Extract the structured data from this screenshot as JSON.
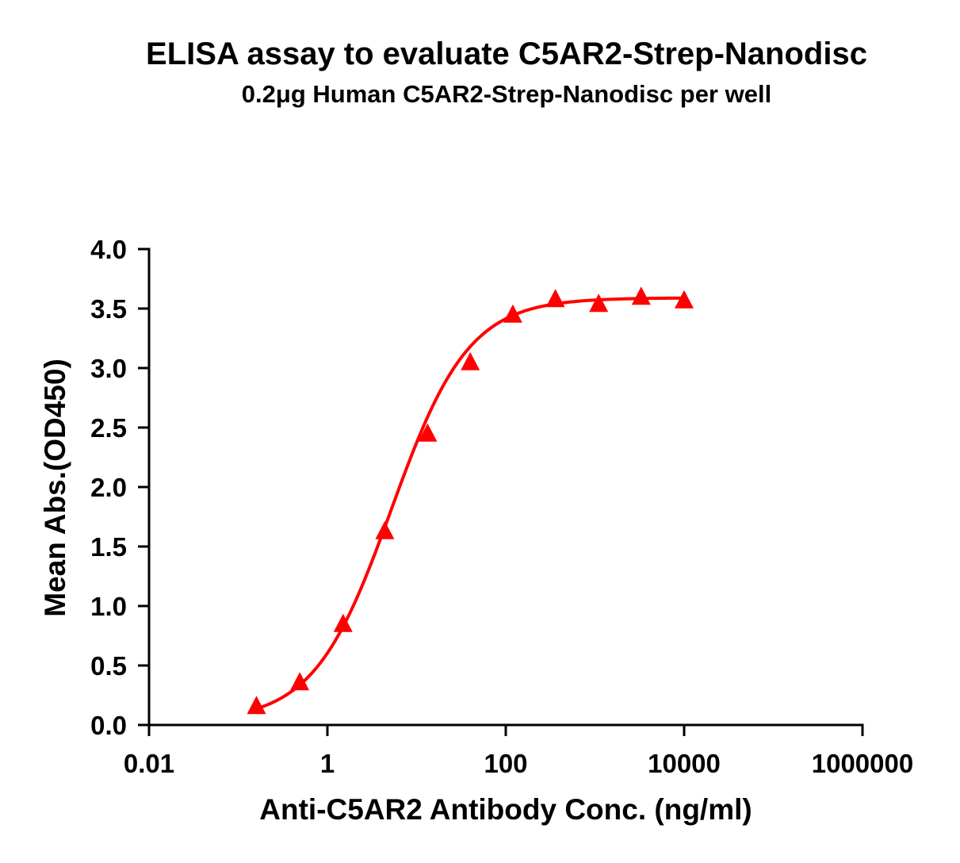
{
  "chart_data": {
    "type": "scatter",
    "title": "ELISA assay to evaluate C5AR2-Strep-Nanodisc",
    "subtitle": "0.2μg Human C5AR2-Strep-Nanodisc per well",
    "xlabel": "Anti-C5AR2 Antibody Conc. (ng/ml)",
    "ylabel": "Mean Abs.(OD450)",
    "xscale": "log",
    "xlim": [
      0.01,
      1000000
    ],
    "ylim": [
      0,
      4.0
    ],
    "x_ticks": [
      "0.01",
      "1",
      "100",
      "10000",
      "1000000"
    ],
    "y_ticks": [
      "0.0",
      "0.5",
      "1.0",
      "1.5",
      "2.0",
      "2.5",
      "3.0",
      "3.5",
      "4.0"
    ],
    "grid": false,
    "color": "#ff0000",
    "marker": "triangle",
    "fit": "4-parameter logistic curve",
    "series": [
      {
        "x": [
          0.16,
          0.49,
          1.5,
          4.4,
          13.3,
          40,
          120,
          360,
          1100,
          3300,
          10000
        ],
        "y": [
          0.15,
          0.35,
          0.84,
          1.62,
          2.44,
          3.04,
          3.44,
          3.57,
          3.53,
          3.59,
          3.56
        ]
      }
    ]
  }
}
